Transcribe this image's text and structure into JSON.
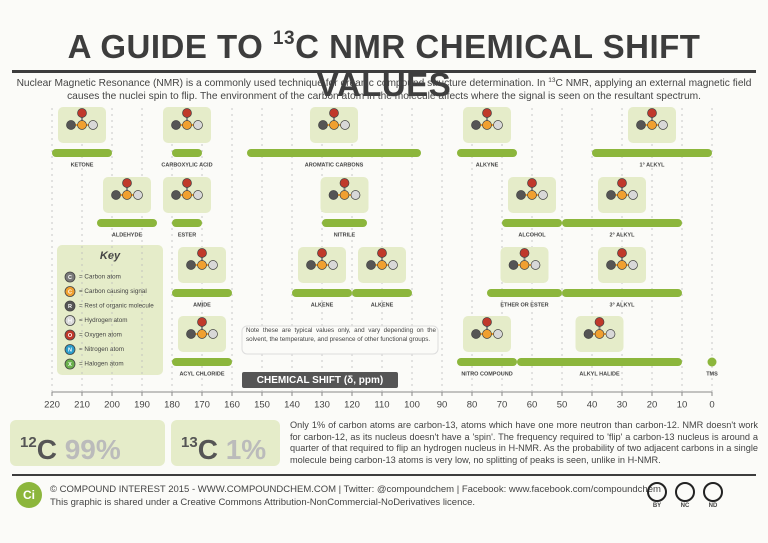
{
  "header": {
    "title": {
      "before": "A GUIDE TO ",
      "sup": "13",
      "after": "C NMR CHEMICAL SHIFT VALUES"
    },
    "intro": [
      "Nuclear Magnetic Resonance (NMR) is a commonly used technique for organic compound structure determination. In ",
      "13",
      "C NMR, applying an external magnetic field causes the nuclei spin to flip. The environment of the carbon atom in the molecule affects where the signal is seen on the resultant spectrum."
    ]
  },
  "key": {
    "title": "Key",
    "items": [
      {
        "symbol": "C",
        "label": "= Carbon atom",
        "color": "#7a7a7a"
      },
      {
        "symbol": "C",
        "label": "= Carbon causing signal",
        "color": "#f0a030"
      },
      {
        "symbol": "R",
        "label": "= Rest of organic molecule",
        "color": "#555555"
      },
      {
        "symbol": "H",
        "label": "= Hydrogen atom",
        "color": "#d8d8d8"
      },
      {
        "symbol": "O",
        "label": "= Oxygen atom",
        "color": "#c0392b"
      },
      {
        "symbol": "N",
        "label": "= Nitrogen atom",
        "color": "#2b9bc9"
      },
      {
        "symbol": "X",
        "label": "= Halogen atom",
        "color": "#6ab04c"
      }
    ]
  },
  "chart_data": {
    "type": "range",
    "xlim": [
      220,
      0
    ],
    "xticks": [
      220,
      210,
      200,
      190,
      180,
      170,
      160,
      150,
      140,
      130,
      120,
      110,
      100,
      90,
      80,
      70,
      60,
      50,
      40,
      30,
      20,
      10,
      0
    ],
    "xlabel": "CHEMICAL SHIFT (δ, ppm)",
    "color": "#8cb63c",
    "note": "Note these are typical values only, and vary depending on the solvent, the temperature, and presence of other functional groups.",
    "rows": [
      [
        {
          "label": "KETONE",
          "range": [
            220,
            200
          ]
        },
        {
          "label": "CARBOXYLIC ACID",
          "range": [
            180,
            170
          ]
        },
        {
          "label": "AROMATIC CARBONS",
          "range": [
            155,
            97
          ]
        },
        {
          "label": "ALKYNE",
          "range": [
            85,
            65
          ]
        },
        {
          "label": "1° ALKYL",
          "range": [
            40,
            0
          ]
        }
      ],
      [
        {
          "label": "ALDEHYDE",
          "range": [
            205,
            185
          ]
        },
        {
          "label": "ESTER",
          "range": [
            180,
            170
          ]
        },
        {
          "label": "NITRILE",
          "range": [
            130,
            115
          ]
        },
        {
          "label": "ALCOHOL",
          "range": [
            70,
            50
          ]
        },
        {
          "label": "2° ALKYL",
          "range": [
            50,
            10
          ]
        }
      ],
      [
        {
          "label": "AMIDE",
          "range": [
            180,
            160
          ]
        },
        {
          "label": "ALKENE",
          "range": [
            140,
            120
          ]
        },
        {
          "label": "ALKENE",
          "range": [
            120,
            100
          ]
        },
        {
          "label": "ETHER OR ESTER",
          "range": [
            75,
            50
          ]
        },
        {
          "label": "3° ALKYL",
          "range": [
            50,
            10
          ]
        }
      ],
      [
        {
          "label": "ACYL CHLORIDE",
          "range": [
            180,
            160
          ]
        },
        {
          "label": "NITRO COMPOUND",
          "range": [
            85,
            65
          ]
        },
        {
          "label": "ALKYL HALIDE",
          "range": [
            65,
            10
          ]
        }
      ]
    ],
    "reference": {
      "label": "TMS",
      "value": 0
    }
  },
  "stats": [
    {
      "mass": "12",
      "element": "C",
      "percent": "99%"
    },
    {
      "mass": "13",
      "element": "C",
      "percent": "1%"
    }
  ],
  "paragraph": "Only 1% of carbon atoms are carbon-13, atoms which have one more neutron than carbon-12. NMR doesn't work for carbon-12, as its nucleus doesn't have a 'spin'. The frequency required to 'flip' a carbon-13 nucleus is around a quarter of that required to flip an hydrogen nucleus in H-NMR. As the probability of two adjacent carbons in a single molecule being carbon-13 atoms is very low, no splitting of peaks is seen, unlike in H-NMR.",
  "footer": {
    "logo": "Ci",
    "line1": "© COMPOUND INTEREST 2015 - WWW.COMPOUNDCHEM.COM | Twitter: @compoundchem | Facebook: www.facebook.com/compoundchem",
    "line2": "This graphic is shared under a Creative Commons Attribution-NonCommercial-NoDerivatives licence.",
    "badges": [
      "BY",
      "NC",
      "ND"
    ]
  }
}
